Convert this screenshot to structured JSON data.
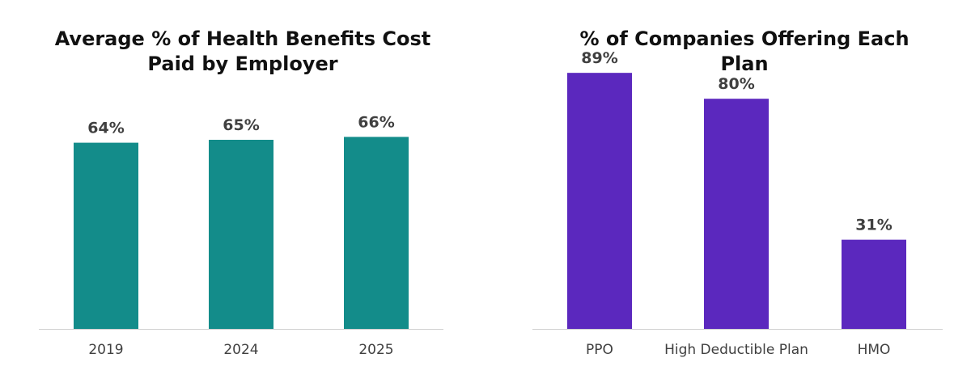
{
  "chart_data": [
    {
      "type": "bar",
      "title": "Average % of Health Benefits Cost Paid by Employer",
      "categories": [
        "2019",
        "2024",
        "2025"
      ],
      "values": [
        64,
        65,
        66
      ],
      "value_labels": [
        "64%",
        "65%",
        "66%"
      ],
      "xlabel": "",
      "ylabel": "",
      "ylim": [
        0,
        100
      ],
      "grid": false,
      "color": "#138C8A"
    },
    {
      "type": "bar",
      "title": "% of Companies Offering Each Plan",
      "categories": [
        "PPO",
        "High Deductible Plan",
        "HMO"
      ],
      "values": [
        89,
        80,
        31
      ],
      "value_labels": [
        "89%",
        "80%",
        "31%"
      ],
      "xlabel": "",
      "ylabel": "",
      "ylim": [
        0,
        100
      ],
      "grid": false,
      "color": "#5B28BE"
    }
  ]
}
